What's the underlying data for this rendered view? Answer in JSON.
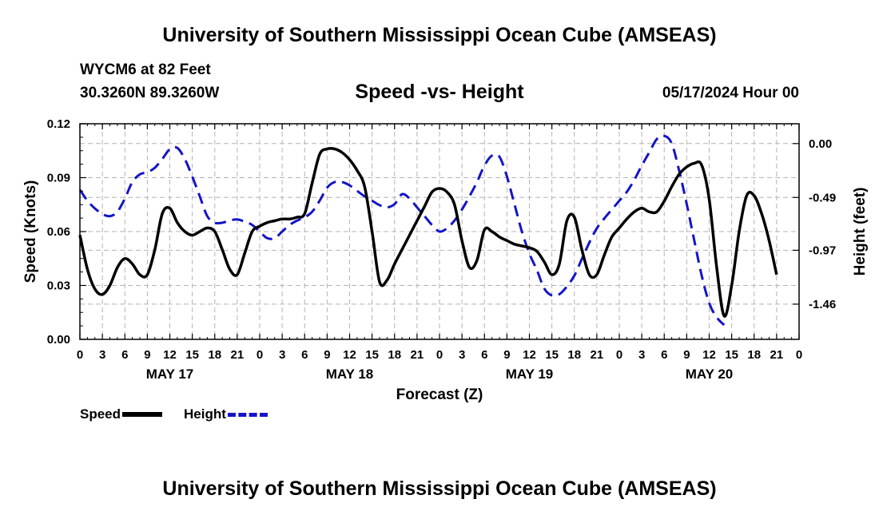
{
  "header": {
    "title": "University of Southern Mississippi Ocean Cube (AMSEAS)",
    "station": "WYCM6 at 82 Feet",
    "coords": "30.3260N  89.3260W",
    "subtitle": "Speed -vs- Height",
    "timestamp": "05/17/2024 Hour 00"
  },
  "footer": {
    "title": "University of Southern Mississippi Ocean Cube (AMSEAS)"
  },
  "legend": {
    "speed": "Speed",
    "height": "Height"
  },
  "chart_data": {
    "type": "line",
    "xlabel": "Forecast (Z)",
    "ylabel_left": "Speed (Knots)",
    "ylabel_right": "Height (feet)",
    "x_range_hours": [
      0,
      96
    ],
    "y_left_range": [
      0.0,
      0.12
    ],
    "y_right_range": [
      -1.78,
      0.18
    ],
    "y_left_ticks": [
      "0.00",
      "0.03",
      "0.06",
      "0.09",
      "0.12"
    ],
    "y_right_ticks": [
      {
        "value": 0.0,
        "label": "0.00"
      },
      {
        "value": -0.49,
        "label": "-0.49"
      },
      {
        "value": -0.97,
        "label": "-0.97"
      },
      {
        "value": -1.46,
        "label": "-1.46"
      }
    ],
    "x_tick_labels": [
      "0",
      "3",
      "6",
      "9",
      "12",
      "15",
      "18",
      "21",
      "0",
      "3",
      "6",
      "9",
      "12",
      "15",
      "18",
      "21",
      "0",
      "3",
      "6",
      "9",
      "12",
      "15",
      "18",
      "21",
      "0",
      "3",
      "6",
      "9",
      "12",
      "15",
      "18",
      "21",
      "0"
    ],
    "day_labels": [
      {
        "hour": 12,
        "label": "MAY 17"
      },
      {
        "hour": 36,
        "label": "MAY 18"
      },
      {
        "hour": 60,
        "label": "MAY 19"
      },
      {
        "hour": 84,
        "label": "MAY 20"
      }
    ],
    "grid": true,
    "legend_position": "bottom-left",
    "series": [
      {
        "name": "Speed",
        "axis": "left",
        "color": "#000000",
        "style": "solid",
        "points": [
          [
            0,
            0.058
          ],
          [
            1,
            0.039
          ],
          [
            2,
            0.028
          ],
          [
            3,
            0.025
          ],
          [
            4,
            0.03
          ],
          [
            5,
            0.04
          ],
          [
            6,
            0.045
          ],
          [
            7,
            0.042
          ],
          [
            8,
            0.036
          ],
          [
            9,
            0.036
          ],
          [
            10,
            0.05
          ],
          [
            11,
            0.07
          ],
          [
            12,
            0.073
          ],
          [
            13,
            0.065
          ],
          [
            14,
            0.06
          ],
          [
            15,
            0.058
          ],
          [
            16,
            0.06
          ],
          [
            17,
            0.062
          ],
          [
            18,
            0.06
          ],
          [
            19,
            0.05
          ],
          [
            20,
            0.039
          ],
          [
            21,
            0.036
          ],
          [
            22,
            0.048
          ],
          [
            23,
            0.06
          ],
          [
            24,
            0.063
          ],
          [
            25,
            0.065
          ],
          [
            26,
            0.066
          ],
          [
            27,
            0.067
          ],
          [
            28,
            0.067
          ],
          [
            29,
            0.068
          ],
          [
            30,
            0.07
          ],
          [
            31,
            0.087
          ],
          [
            32,
            0.103
          ],
          [
            33,
            0.106
          ],
          [
            34,
            0.106
          ],
          [
            35,
            0.104
          ],
          [
            36,
            0.1
          ],
          [
            37,
            0.094
          ],
          [
            38,
            0.085
          ],
          [
            39,
            0.06
          ],
          [
            40,
            0.032
          ],
          [
            41,
            0.033
          ],
          [
            42,
            0.042
          ],
          [
            43,
            0.05
          ],
          [
            44,
            0.058
          ],
          [
            45,
            0.066
          ],
          [
            46,
            0.074
          ],
          [
            47,
            0.082
          ],
          [
            48,
            0.084
          ],
          [
            49,
            0.082
          ],
          [
            50,
            0.075
          ],
          [
            51,
            0.055
          ],
          [
            52,
            0.04
          ],
          [
            53,
            0.044
          ],
          [
            54,
            0.061
          ],
          [
            55,
            0.06
          ],
          [
            56,
            0.057
          ],
          [
            57,
            0.055
          ],
          [
            58,
            0.053
          ],
          [
            59,
            0.052
          ],
          [
            60,
            0.051
          ],
          [
            61,
            0.049
          ],
          [
            62,
            0.043
          ],
          [
            63,
            0.036
          ],
          [
            64,
            0.042
          ],
          [
            65,
            0.066
          ],
          [
            66,
            0.068
          ],
          [
            67,
            0.05
          ],
          [
            68,
            0.036
          ],
          [
            69,
            0.036
          ],
          [
            70,
            0.047
          ],
          [
            71,
            0.057
          ],
          [
            72,
            0.062
          ],
          [
            73,
            0.067
          ],
          [
            74,
            0.071
          ],
          [
            75,
            0.073
          ],
          [
            76,
            0.071
          ],
          [
            77,
            0.071
          ],
          [
            78,
            0.077
          ],
          [
            79,
            0.085
          ],
          [
            80,
            0.092
          ],
          [
            81,
            0.096
          ],
          [
            82,
            0.098
          ],
          [
            83,
            0.097
          ],
          [
            84,
            0.078
          ],
          [
            85,
            0.04
          ],
          [
            86,
            0.013
          ],
          [
            87,
            0.03
          ],
          [
            88,
            0.06
          ],
          [
            89,
            0.08
          ],
          [
            90,
            0.08
          ],
          [
            91,
            0.07
          ],
          [
            92,
            0.055
          ],
          [
            93,
            0.036
          ]
        ]
      },
      {
        "name": "Height",
        "axis": "right",
        "color": "#1414c8",
        "style": "dashed",
        "points": [
          [
            0,
            -0.42
          ],
          [
            1,
            -0.52
          ],
          [
            2,
            -0.59
          ],
          [
            3,
            -0.64
          ],
          [
            4,
            -0.66
          ],
          [
            5,
            -0.62
          ],
          [
            6,
            -0.5
          ],
          [
            7,
            -0.35
          ],
          [
            8,
            -0.28
          ],
          [
            9,
            -0.26
          ],
          [
            10,
            -0.22
          ],
          [
            11,
            -0.14
          ],
          [
            12,
            -0.05
          ],
          [
            13,
            -0.04
          ],
          [
            14,
            -0.14
          ],
          [
            15,
            -0.3
          ],
          [
            16,
            -0.48
          ],
          [
            17,
            -0.66
          ],
          [
            18,
            -0.72
          ],
          [
            19,
            -0.72
          ],
          [
            20,
            -0.7
          ],
          [
            21,
            -0.69
          ],
          [
            22,
            -0.71
          ],
          [
            23,
            -0.74
          ],
          [
            24,
            -0.8
          ],
          [
            25,
            -0.86
          ],
          [
            26,
            -0.86
          ],
          [
            27,
            -0.8
          ],
          [
            28,
            -0.74
          ],
          [
            29,
            -0.7
          ],
          [
            30,
            -0.67
          ],
          [
            31,
            -0.62
          ],
          [
            32,
            -0.52
          ],
          [
            33,
            -0.4
          ],
          [
            34,
            -0.35
          ],
          [
            35,
            -0.35
          ],
          [
            36,
            -0.38
          ],
          [
            37,
            -0.43
          ],
          [
            38,
            -0.48
          ],
          [
            39,
            -0.52
          ],
          [
            40,
            -0.56
          ],
          [
            41,
            -0.58
          ],
          [
            42,
            -0.55
          ],
          [
            43,
            -0.46
          ],
          [
            44,
            -0.5
          ],
          [
            45,
            -0.58
          ],
          [
            46,
            -0.66
          ],
          [
            47,
            -0.74
          ],
          [
            48,
            -0.8
          ],
          [
            49,
            -0.77
          ],
          [
            50,
            -0.7
          ],
          [
            51,
            -0.6
          ],
          [
            52,
            -0.48
          ],
          [
            53,
            -0.35
          ],
          [
            54,
            -0.2
          ],
          [
            55,
            -0.11
          ],
          [
            56,
            -0.12
          ],
          [
            57,
            -0.3
          ],
          [
            58,
            -0.55
          ],
          [
            59,
            -0.8
          ],
          [
            60,
            -1.0
          ],
          [
            61,
            -1.15
          ],
          [
            62,
            -1.32
          ],
          [
            63,
            -1.38
          ],
          [
            64,
            -1.37
          ],
          [
            65,
            -1.3
          ],
          [
            66,
            -1.2
          ],
          [
            67,
            -1.05
          ],
          [
            68,
            -0.9
          ],
          [
            69,
            -0.77
          ],
          [
            70,
            -0.68
          ],
          [
            71,
            -0.6
          ],
          [
            72,
            -0.52
          ],
          [
            73,
            -0.44
          ],
          [
            74,
            -0.33
          ],
          [
            75,
            -0.2
          ],
          [
            76,
            -0.08
          ],
          [
            77,
            0.04
          ],
          [
            78,
            0.07
          ],
          [
            79,
            0.0
          ],
          [
            80,
            -0.25
          ],
          [
            81,
            -0.55
          ],
          [
            82,
            -0.88
          ],
          [
            83,
            -1.2
          ],
          [
            84,
            -1.45
          ],
          [
            85,
            -1.58
          ],
          [
            86,
            -1.65
          ]
        ]
      }
    ]
  }
}
